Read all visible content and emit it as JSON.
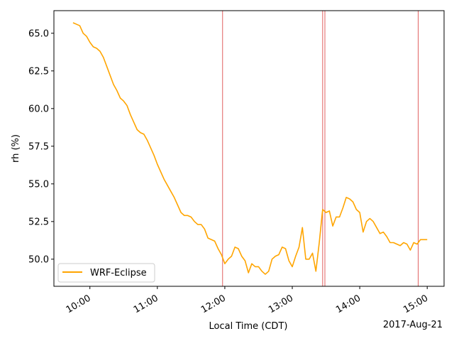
{
  "chart_data": {
    "type": "line",
    "title": "",
    "xlabel": "Local Time (CDT)",
    "ylabel": "rh (%)",
    "date_label": "2017-Aug-21",
    "xlim": [
      "09:28",
      "15:15"
    ],
    "ylim": [
      48.2,
      66.5
    ],
    "x_ticks": [
      "10:00",
      "11:00",
      "12:00",
      "13:00",
      "14:00",
      "15:00"
    ],
    "y_ticks": [
      50.0,
      52.5,
      55.0,
      57.5,
      60.0,
      62.5,
      65.0
    ],
    "y_tick_labels": [
      "50.0",
      "52.5",
      "55.0",
      "57.5",
      "60.0",
      "62.5",
      "65.0"
    ],
    "vlines": [
      "11:58",
      "13:27",
      "13:29",
      "14:52"
    ],
    "vline_color": "#e06060",
    "legend": {
      "position": "lower-left",
      "entries": [
        "WRF-Eclipse"
      ]
    },
    "grid": false,
    "series": [
      {
        "name": "WRF-Eclipse",
        "color": "#ffa500",
        "x": [
          "09:45",
          "09:48",
          "09:51",
          "09:54",
          "09:57",
          "10:00",
          "10:03",
          "10:06",
          "10:09",
          "10:12",
          "10:15",
          "10:18",
          "10:21",
          "10:24",
          "10:27",
          "10:30",
          "10:33",
          "10:36",
          "10:39",
          "10:42",
          "10:45",
          "10:48",
          "10:51",
          "10:54",
          "10:57",
          "11:00",
          "11:03",
          "11:06",
          "11:09",
          "11:12",
          "11:15",
          "11:18",
          "11:21",
          "11:24",
          "11:27",
          "11:30",
          "11:33",
          "11:36",
          "11:39",
          "11:42",
          "11:45",
          "11:48",
          "11:51",
          "11:54",
          "11:57",
          "12:00",
          "12:03",
          "12:06",
          "12:09",
          "12:12",
          "12:15",
          "12:18",
          "12:21",
          "12:24",
          "12:27",
          "12:30",
          "12:33",
          "12:36",
          "12:39",
          "12:42",
          "12:45",
          "12:48",
          "12:51",
          "12:54",
          "12:57",
          "13:00",
          "13:03",
          "13:06",
          "13:09",
          "13:12",
          "13:15",
          "13:18",
          "13:21",
          "13:24",
          "13:27",
          "13:30",
          "13:33",
          "13:36",
          "13:39",
          "13:42",
          "13:45",
          "13:48",
          "13:51",
          "13:54",
          "13:57",
          "14:00",
          "14:03",
          "14:06",
          "14:09",
          "14:12",
          "14:15",
          "14:18",
          "14:21",
          "14:24",
          "14:27",
          "14:30",
          "14:33",
          "14:36",
          "14:39",
          "14:42",
          "14:45",
          "14:48",
          "14:51",
          "14:54",
          "14:57",
          "15:00"
        ],
        "values": [
          65.7,
          65.6,
          65.5,
          65.0,
          64.8,
          64.4,
          64.1,
          64.0,
          63.8,
          63.4,
          62.8,
          62.2,
          61.6,
          61.2,
          60.7,
          60.5,
          60.2,
          59.6,
          59.1,
          58.6,
          58.4,
          58.3,
          57.9,
          57.4,
          56.9,
          56.3,
          55.8,
          55.3,
          54.9,
          54.5,
          54.1,
          53.6,
          53.1,
          52.9,
          52.9,
          52.8,
          52.5,
          52.3,
          52.3,
          52.0,
          51.4,
          51.3,
          51.2,
          50.7,
          50.3,
          49.7,
          50.0,
          50.2,
          50.8,
          50.7,
          50.2,
          49.9,
          49.1,
          49.7,
          49.5,
          49.5,
          49.2,
          49.0,
          49.2,
          50.0,
          50.2,
          50.3,
          50.8,
          50.7,
          49.9,
          49.5,
          50.2,
          50.8,
          52.1,
          50.0,
          50.0,
          50.4,
          49.2,
          51.1,
          53.3,
          53.1,
          53.2,
          52.2,
          52.8,
          52.8,
          53.4,
          54.1,
          54.0,
          53.8,
          53.3,
          53.1,
          51.8,
          52.5,
          52.7,
          52.5,
          52.1,
          51.7,
          51.8,
          51.5,
          51.1,
          51.1,
          51.0,
          50.9,
          51.1,
          51.0,
          50.6,
          51.1,
          51.0,
          51.3,
          51.3,
          51.3
        ]
      }
    ]
  }
}
